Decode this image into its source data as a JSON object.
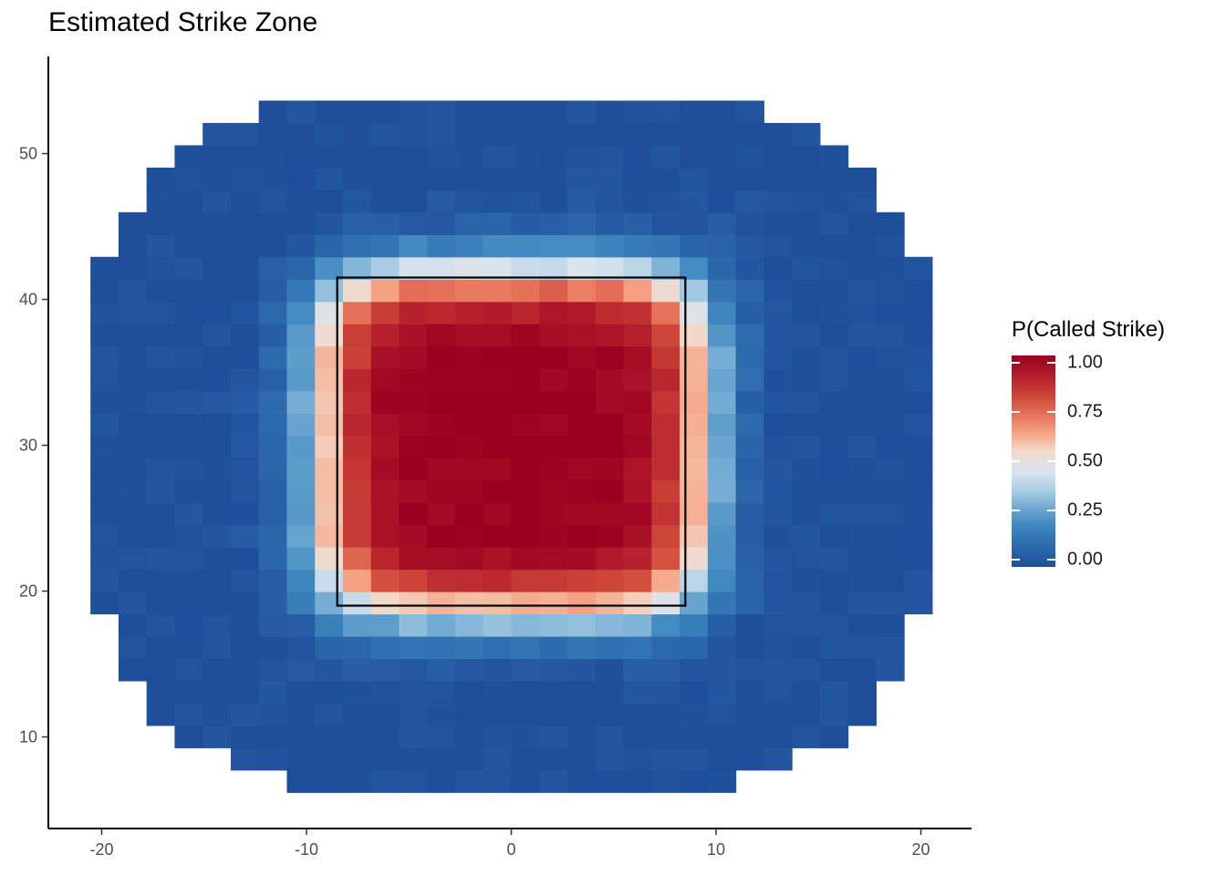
{
  "chart_data": {
    "type": "heatmap",
    "title": "Estimated Strike Zone",
    "xlabel": "",
    "ylabel": "",
    "xlim": [
      -22.5,
      22.5
    ],
    "ylim": [
      4.2,
      57
    ],
    "x_ticks": [
      "-20",
      "-10",
      "0",
      "10",
      "20"
    ],
    "x_tick_values": [
      -20,
      -10,
      0,
      10,
      20
    ],
    "y_ticks": [
      "10",
      "20",
      "30",
      "40",
      "50"
    ],
    "y_tick_values": [
      10,
      20,
      30,
      40,
      50
    ],
    "grid": false,
    "legend": {
      "title": "P(Called Strike)",
      "position": "right",
      "labels": [
        "1.00",
        "0.75",
        "0.50",
        "0.25",
        "0.00"
      ],
      "values": [
        1.0,
        0.75,
        0.5,
        0.25,
        0.0
      ]
    },
    "colors": {
      "low": "#1f4e9b",
      "mid": "#e2e2e2",
      "high": "#9a0020"
    },
    "tile_size": {
      "x": 1.37,
      "y": 1.53
    },
    "x_range": [
      -20.55,
      20.55
    ],
    "y_range": [
      6.2,
      54.2
    ],
    "strike_zone_box": {
      "x": [
        -8.5,
        8.5
      ],
      "y": [
        19,
        41.5
      ]
    },
    "probability_model": "P = 1 / (1 + ((|x|/9.2)^6 + (|y-30.25|/12.4)^6)^(1/6) ... approximated; cells outside footprint not drawn",
    "strike_zone_center": {
      "x": 0,
      "y": 30.25
    }
  }
}
